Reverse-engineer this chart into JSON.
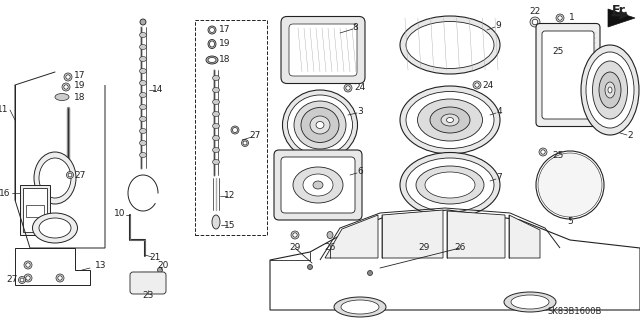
{
  "background_color": "#ffffff",
  "diagram_code": "SK83B1600B",
  "line_color": "#222222",
  "text_color": "#222222",
  "font_size": 6.5
}
